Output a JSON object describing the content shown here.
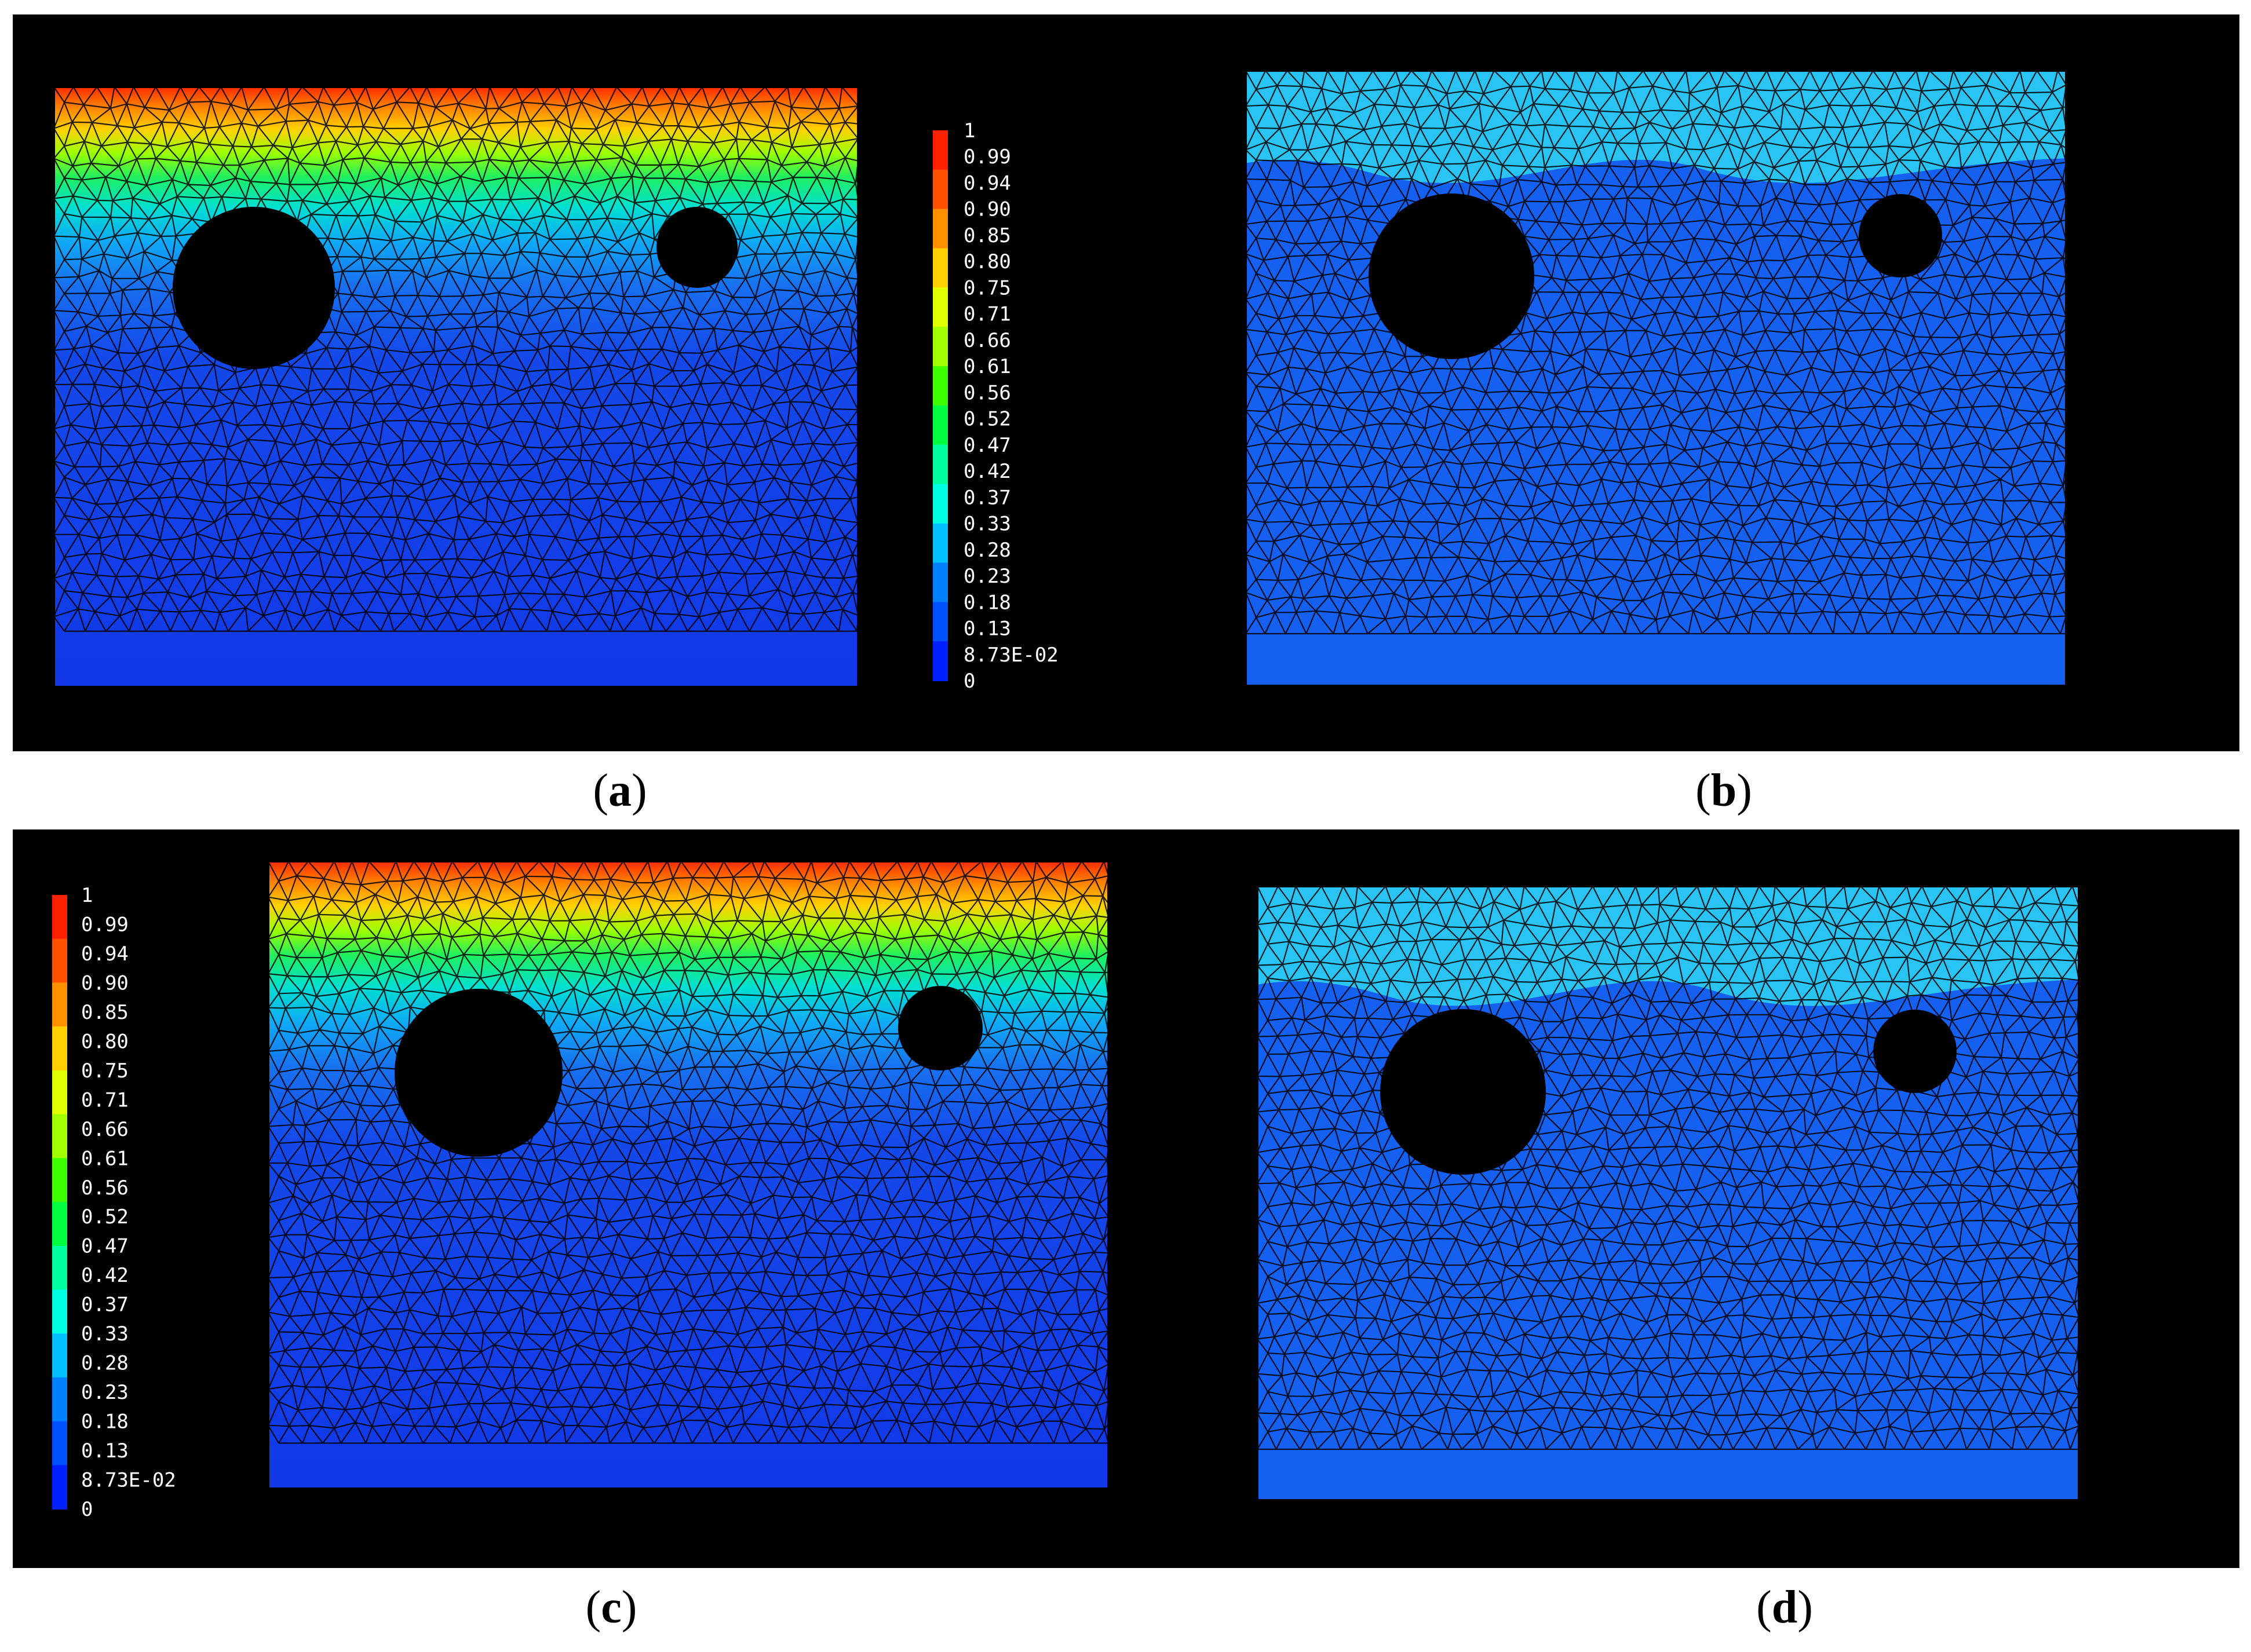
{
  "colorbar": {
    "labels": [
      "1",
      "0.99",
      "0.94",
      "0.90",
      "0.85",
      "0.80",
      "0.75",
      "0.71",
      "0.66",
      "0.61",
      "0.56",
      "0.52",
      "0.47",
      "0.42",
      "0.37",
      "0.33",
      "0.28",
      "0.23",
      "0.18",
      "0.13",
      "8.73E-02",
      "0"
    ],
    "colors": [
      "#ff2000",
      "#ff5000",
      "#ff9000",
      "#ffd000",
      "#e0ff00",
      "#a0ff00",
      "#40ff00",
      "#00ff40",
      "#00ffa0",
      "#00ffe0",
      "#00c0ff",
      "#0080ff",
      "#0050ff",
      "#0020ff"
    ]
  },
  "panels": [
    {
      "id": "a",
      "caption": "(a)",
      "field": "gradient",
      "caption_letter": "a",
      "caption_open": "(",
      "caption_close": ")"
    },
    {
      "id": "b",
      "caption": "(b)",
      "field": "step",
      "caption_letter": "b",
      "caption_open": "(",
      "caption_close": ")"
    },
    {
      "id": "c",
      "caption": "(c)",
      "field": "gradient",
      "caption_letter": "c",
      "caption_open": "(",
      "caption_close": ")"
    },
    {
      "id": "d",
      "caption": "(d)",
      "field": "step",
      "caption_letter": "d",
      "caption_open": "(",
      "caption_close": ")"
    }
  ],
  "field_colors": {
    "step_top": "#29c4f4",
    "step_bottom": "#1560f0",
    "gradient_bottom": "#1238e8"
  }
}
